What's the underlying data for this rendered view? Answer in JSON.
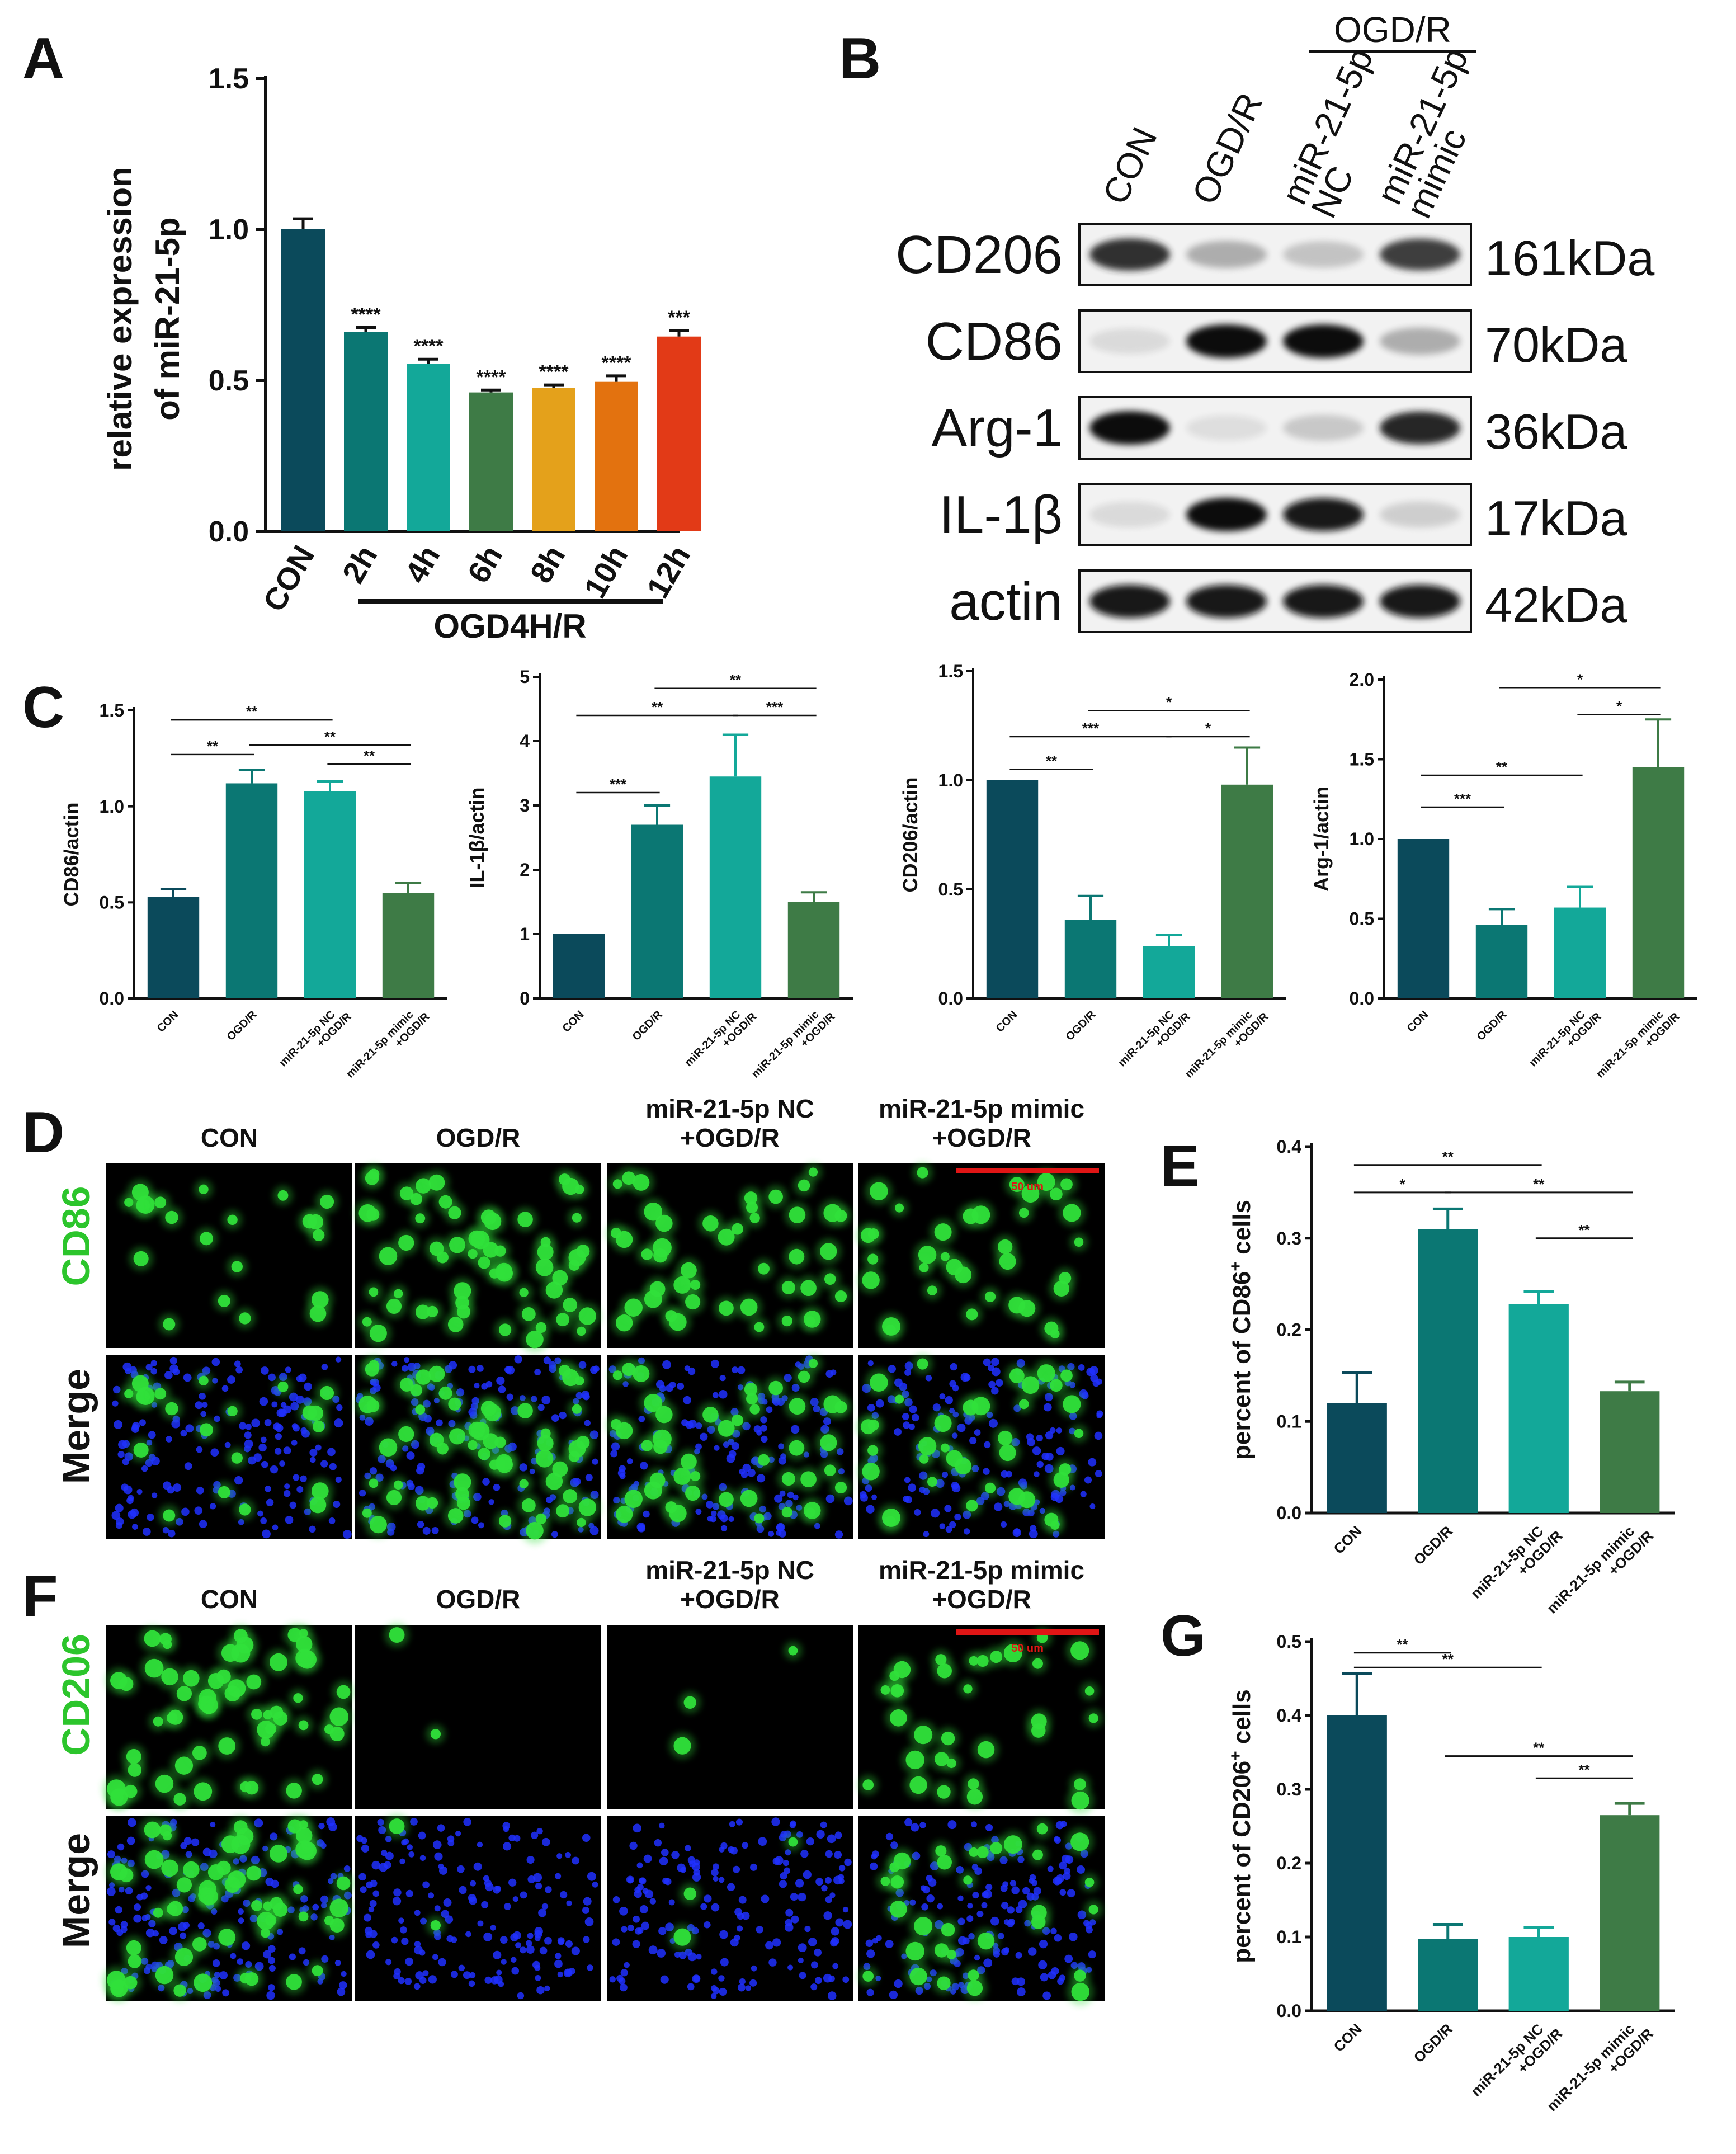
{
  "colors": {
    "con": "#0b4a5b",
    "ogd": "#0b7773",
    "nc": "#13a899",
    "mimic": "#3e7b46",
    "h8": "#e4a11b",
    "h10": "#e3720f",
    "h12": "#e23a17",
    "fluor_green": "#30e03a",
    "fluor_blue": "#2030ff",
    "scalebar": "#e01515"
  },
  "panel_labels": {
    "A": "A",
    "B": "B",
    "C": "C",
    "D": "D",
    "E": "E",
    "F": "F",
    "G": "G"
  },
  "panel_a": {
    "ylabel_line1": "relative expression",
    "ylabel_line2": "of miR-21-5p",
    "group_label": "OGD4H/R",
    "chart_data": {
      "type": "bar",
      "categories": [
        "CON",
        "2h",
        "4h",
        "6h",
        "8h",
        "10h",
        "12h"
      ],
      "values": [
        1.0,
        0.66,
        0.555,
        0.46,
        0.475,
        0.495,
        0.645
      ],
      "errors": [
        0.035,
        0.015,
        0.015,
        0.008,
        0.01,
        0.02,
        0.02
      ],
      "significance": [
        "",
        "****",
        "****",
        "****",
        "****",
        "****",
        "***"
      ],
      "yticks": [
        "0.0",
        "0.5",
        "1.0",
        "1.5"
      ],
      "ylim": [
        0,
        1.5
      ]
    }
  },
  "panel_b": {
    "lanes": [
      "CON",
      "OGD/R",
      "miR-21-5p NC",
      "miR-21-5p mimic"
    ],
    "group_label": "OGD/R",
    "rows": [
      {
        "name": "CD206",
        "mw": "161kDa",
        "intensity": [
          0.85,
          0.3,
          0.2,
          0.8
        ]
      },
      {
        "name": "CD86",
        "mw": "70kDa",
        "intensity": [
          0.1,
          1.0,
          1.0,
          0.3
        ]
      },
      {
        "name": "Arg-1",
        "mw": "36kDa",
        "intensity": [
          1.0,
          0.08,
          0.18,
          0.9
        ]
      },
      {
        "name": "IL-1β",
        "mw": "17kDa",
        "intensity": [
          0.1,
          1.0,
          0.95,
          0.15
        ]
      },
      {
        "name": "actin",
        "mw": "42kDa",
        "intensity": [
          0.95,
          0.95,
          0.95,
          0.95
        ]
      }
    ]
  },
  "panel_c_categories": [
    "CON",
    "OGD/R",
    "miR-21-5p NC\n+OGD/R",
    "miR-21-5p mimic\n+OGD/R"
  ],
  "chart_data": [
    {
      "id": "c1",
      "type": "bar",
      "ylabel": "CD86/actin",
      "categories": [
        "CON",
        "OGD/R",
        "miR-21-5p NC +OGD/R",
        "miR-21-5p mimic +OGD/R"
      ],
      "values": [
        0.53,
        1.12,
        1.08,
        0.55
      ],
      "errors": [
        0.04,
        0.07,
        0.05,
        0.05
      ],
      "yticks": [
        "0.0",
        "0.5",
        "1.0",
        "1.5"
      ],
      "ylim": [
        0,
        1.5
      ],
      "brackets": [
        {
          "from": 0,
          "to": 2,
          "y": 1.45,
          "label": "**"
        },
        {
          "from": 0,
          "to": 1,
          "y": 1.27,
          "label": "**"
        },
        {
          "from": 1,
          "to": 3,
          "y": 1.32,
          "label": "**"
        },
        {
          "from": 2,
          "to": 3,
          "y": 1.22,
          "label": "**"
        }
      ]
    },
    {
      "id": "c2",
      "type": "bar",
      "ylabel": "IL-1β/actin",
      "categories": [
        "CON",
        "OGD/R",
        "miR-21-5p NC +OGD/R",
        "miR-21-5p mimic +OGD/R"
      ],
      "values": [
        1.0,
        2.7,
        3.45,
        1.5
      ],
      "errors": [
        0.0,
        0.3,
        0.65,
        0.15
      ],
      "yticks": [
        "0",
        "1",
        "2",
        "3",
        "4",
        "5"
      ],
      "ylim": [
        0,
        5
      ],
      "brackets": [
        {
          "from": 1,
          "to": 3,
          "y": 4.82,
          "label": "**"
        },
        {
          "from": 0,
          "to": 2,
          "y": 4.4,
          "label": "**"
        },
        {
          "from": 2,
          "to": 3,
          "y": 4.4,
          "label": "***"
        },
        {
          "from": 0,
          "to": 1,
          "y": 3.2,
          "label": "***"
        }
      ]
    },
    {
      "id": "c3",
      "type": "bar",
      "ylabel": "CD206/actin",
      "categories": [
        "CON",
        "OGD/R",
        "miR-21-5p NC +OGD/R",
        "miR-21-5p mimic +OGD/R"
      ],
      "values": [
        1.0,
        0.36,
        0.24,
        0.98
      ],
      "errors": [
        0.0,
        0.11,
        0.05,
        0.17
      ],
      "yticks": [
        "0.0",
        "0.5",
        "1.0",
        "1.5"
      ],
      "ylim": [
        0,
        1.5
      ],
      "brackets": [
        {
          "from": 1,
          "to": 3,
          "y": 1.32,
          "label": "*"
        },
        {
          "from": 0,
          "to": 2,
          "y": 1.2,
          "label": "***"
        },
        {
          "from": 2,
          "to": 3,
          "y": 1.2,
          "label": "*"
        },
        {
          "from": 0,
          "to": 1,
          "y": 1.05,
          "label": "**"
        }
      ]
    },
    {
      "id": "c4",
      "type": "bar",
      "ylabel": "Arg-1/actin",
      "categories": [
        "CON",
        "OGD/R",
        "miR-21-5p NC +OGD/R",
        "miR-21-5p mimic +OGD/R"
      ],
      "values": [
        1.0,
        0.46,
        0.57,
        1.45
      ],
      "errors": [
        0.0,
        0.1,
        0.13,
        0.3
      ],
      "yticks": [
        "0.0",
        "0.5",
        "1.0",
        "1.5",
        "2.0"
      ],
      "ylim": [
        0,
        2.0
      ],
      "brackets": [
        {
          "from": 1,
          "to": 3,
          "y": 1.95,
          "label": "*"
        },
        {
          "from": 2,
          "to": 3,
          "y": 1.78,
          "label": "*"
        },
        {
          "from": 0,
          "to": 2,
          "y": 1.4,
          "label": "**"
        },
        {
          "from": 0,
          "to": 1,
          "y": 1.2,
          "label": "***"
        }
      ]
    },
    {
      "id": "e",
      "type": "bar",
      "ylabel_prefix": "percent of CD86",
      "ylabel_suffix": " cells",
      "categories": [
        "CON",
        "OGD/R",
        "miR-21-5p NC +OGD/R",
        "miR-21-5p mimic +OGD/R"
      ],
      "values": [
        0.12,
        0.31,
        0.228,
        0.133
      ],
      "errors": [
        0.033,
        0.022,
        0.014,
        0.01
      ],
      "yticks": [
        "0.0",
        "0.1",
        "0.2",
        "0.3",
        "0.4"
      ],
      "ylim": [
        0,
        0.4
      ],
      "brackets": [
        {
          "from": 0,
          "to": 2,
          "y": 0.38,
          "label": "**"
        },
        {
          "from": 0,
          "to": 1,
          "y": 0.35,
          "label": "*"
        },
        {
          "from": 1,
          "to": 3,
          "y": 0.35,
          "label": "**"
        },
        {
          "from": 2,
          "to": 3,
          "y": 0.3,
          "label": "**"
        }
      ]
    },
    {
      "id": "g",
      "type": "bar",
      "ylabel_prefix": "percent of CD206",
      "ylabel_suffix": " cells",
      "categories": [
        "CON",
        "OGD/R",
        "miR-21-5p NC +OGD/R",
        "miR-21-5p mimic +OGD/R"
      ],
      "values": [
        0.4,
        0.097,
        0.1,
        0.265
      ],
      "errors": [
        0.057,
        0.02,
        0.013,
        0.016
      ],
      "yticks": [
        "0.0",
        "0.1",
        "0.2",
        "0.3",
        "0.4",
        "0.5"
      ],
      "ylim": [
        0,
        0.5
      ],
      "brackets": [
        {
          "from": 0,
          "to": 1,
          "y": 0.485,
          "label": "**"
        },
        {
          "from": 0,
          "to": 2,
          "y": 0.465,
          "label": "**"
        },
        {
          "from": 1,
          "to": 3,
          "y": 0.345,
          "label": "**"
        },
        {
          "from": 2,
          "to": 3,
          "y": 0.315,
          "label": "**"
        }
      ]
    }
  ],
  "panel_d": {
    "columns": [
      "CON",
      "OGD/R",
      "miR-21-5p NC\n+OGD/R",
      "miR-21-5p mimic\n+OGD/R"
    ],
    "rows": [
      "CD86",
      "Merge"
    ],
    "scale_bar": "50 um",
    "green_density": [
      0.35,
      1.0,
      0.75,
      0.6
    ]
  },
  "panel_f": {
    "columns": [
      "CON",
      "OGD/R",
      "miR-21-5p NC\n+OGD/R",
      "miR-21-5p mimic\n+OGD/R"
    ],
    "rows": [
      "CD206",
      "Merge"
    ],
    "scale_bar": "50 um",
    "green_density": [
      1.0,
      0.03,
      0.05,
      0.55
    ]
  }
}
